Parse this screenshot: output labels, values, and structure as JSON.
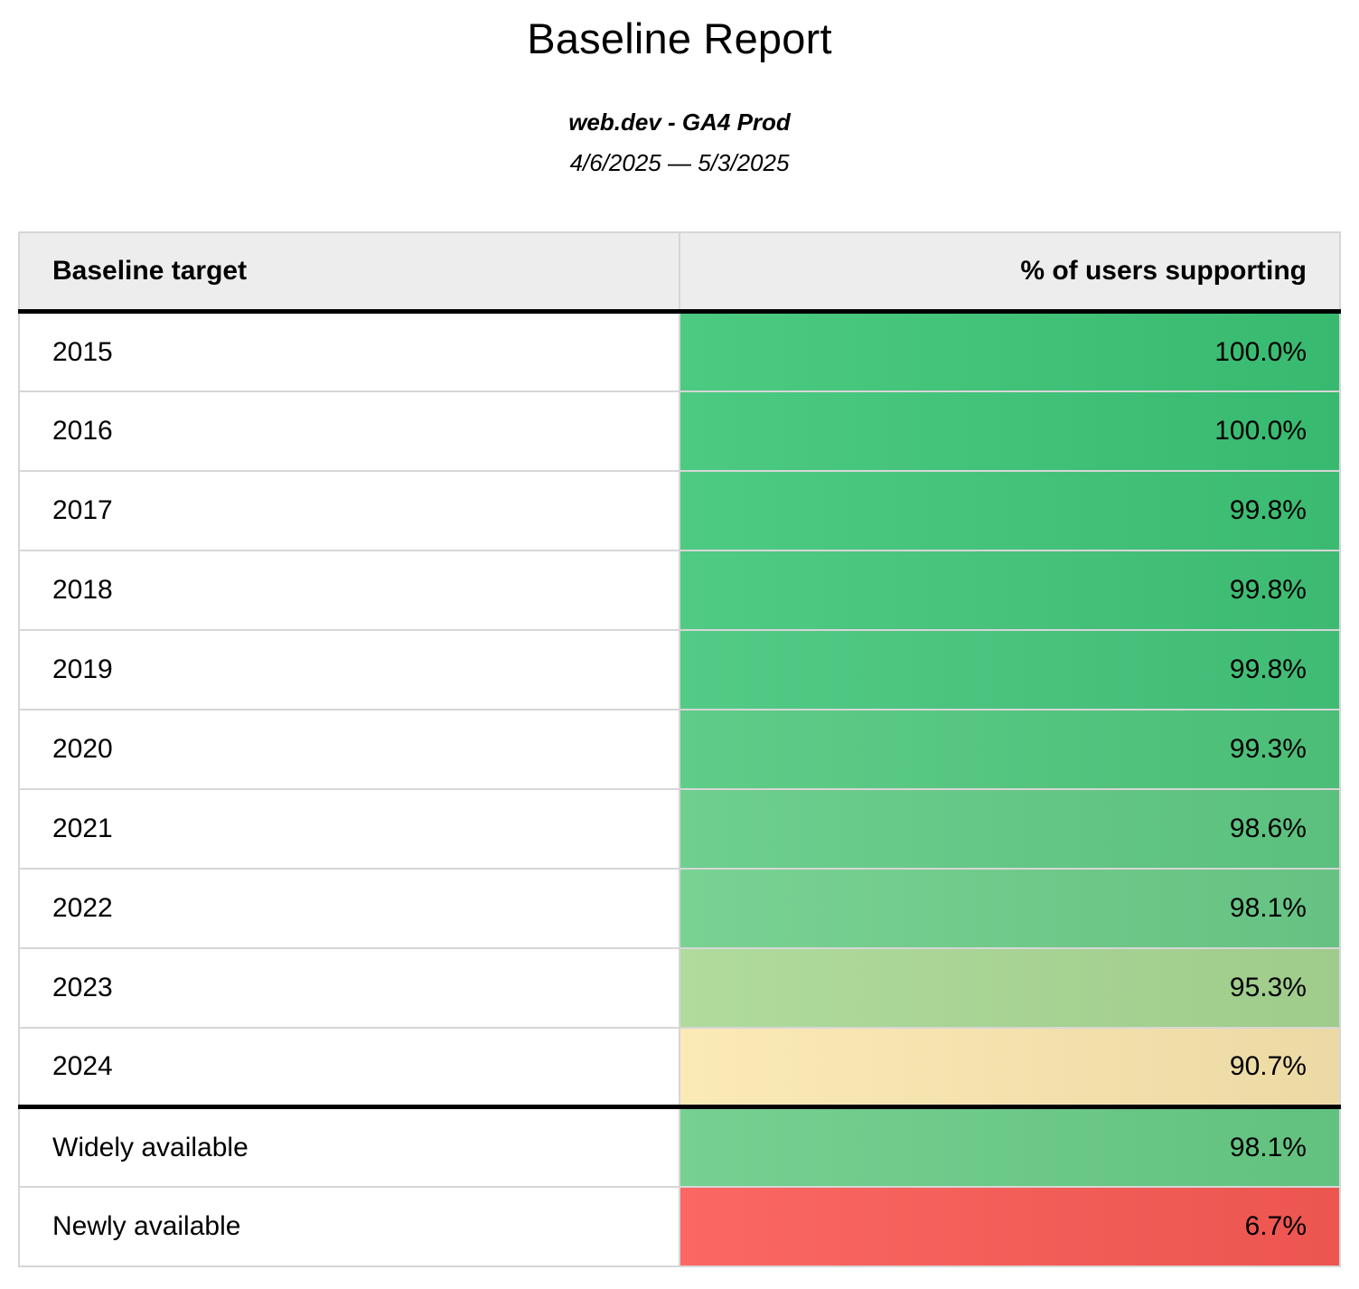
{
  "page": {
    "title": "Baseline Report",
    "subtitle": "web.dev - GA4 Prod",
    "date_range": "4/6/2025 — 5/3/2025"
  },
  "table": {
    "columns": [
      {
        "label": "Baseline target"
      },
      {
        "label": "% of users supporting"
      }
    ],
    "rows": [
      {
        "target": "2015",
        "value": "100.0%",
        "color": "#3cc577",
        "group": "year"
      },
      {
        "target": "2016",
        "value": "100.0%",
        "color": "#3cc577",
        "group": "year"
      },
      {
        "target": "2017",
        "value": "99.8%",
        "color": "#3fc678",
        "group": "year"
      },
      {
        "target": "2018",
        "value": "99.8%",
        "color": "#41c679",
        "group": "year"
      },
      {
        "target": "2019",
        "value": "99.8%",
        "color": "#44c77b",
        "group": "year"
      },
      {
        "target": "2020",
        "value": "99.3%",
        "color": "#50c97f",
        "group": "year"
      },
      {
        "target": "2021",
        "value": "98.6%",
        "color": "#61cb85",
        "group": "year"
      },
      {
        "target": "2022",
        "value": "98.1%",
        "color": "#6dce8a",
        "group": "year"
      },
      {
        "target": "2023",
        "value": "95.3%",
        "color": "#a9d894",
        "group": "year"
      },
      {
        "target": "2024",
        "value": "90.7%",
        "color": "#fbe8af",
        "group": "year"
      },
      {
        "target": "Widely available",
        "value": "98.1%",
        "color": "#69cd87",
        "group": "summary"
      },
      {
        "target": "Newly available",
        "value": "6.7%",
        "color": "#fb5a55",
        "group": "summary"
      }
    ],
    "styles": {
      "header_bg": "#ededed",
      "grid_border": "#d6d6d6",
      "section_border": "#000000"
    }
  }
}
